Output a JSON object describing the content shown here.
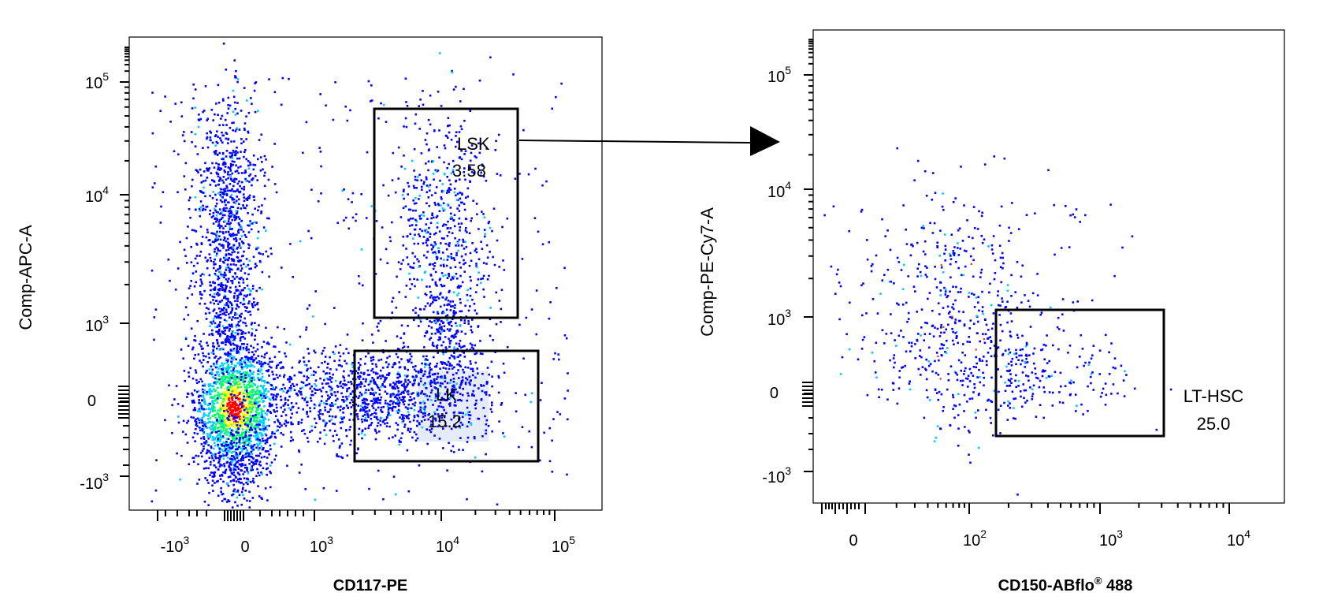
{
  "chart_data": [
    {
      "type": "scatter",
      "plot_kind": "flow-cytometry pseudocolor dot plot",
      "xlabel": "CD117-PE",
      "ylabel": "Comp-APC-A",
      "x_scale": "biexponential",
      "y_scale": "biexponential",
      "x_ticks": [
        {
          "value": -1000,
          "base": "-10",
          "exp": "3"
        },
        {
          "value": 0,
          "base": "0",
          "exp": ""
        },
        {
          "value": 1000,
          "base": "10",
          "exp": "3"
        },
        {
          "value": 10000,
          "base": "10",
          "exp": "4"
        },
        {
          "value": 100000,
          "base": "10",
          "exp": "5"
        }
      ],
      "y_ticks": [
        {
          "value": 100000,
          "base": "10",
          "exp": "5"
        },
        {
          "value": 10000,
          "base": "10",
          "exp": "4"
        },
        {
          "value": 1000,
          "base": "10",
          "exp": "3"
        },
        {
          "value": 0,
          "base": "0",
          "exp": ""
        },
        {
          "value": -1000,
          "base": "-10",
          "exp": "3"
        }
      ],
      "gates": [
        {
          "name": "LSK",
          "value": "3.58",
          "x_range": [
            2500,
            60000
          ],
          "y_range": [
            1200,
            60000
          ]
        },
        {
          "name": "LK",
          "value": "15.2",
          "x_range": [
            2000,
            60000
          ],
          "y_range": [
            -700,
            600
          ]
        }
      ],
      "populations": [
        {
          "x": 0,
          "y": 0,
          "density": "high"
        },
        {
          "x": 0,
          "y": 5000,
          "density": "medium"
        },
        {
          "x": 9000,
          "y": 8000,
          "density": "medium"
        },
        {
          "x": 7000,
          "y": 0,
          "density": "medium"
        }
      ]
    },
    {
      "type": "scatter",
      "plot_kind": "flow-cytometry pseudocolor dot plot",
      "xlabel": "CD150-ABflo",
      "xlabel_mark": "®",
      "xlabel_suffix": " 488",
      "ylabel": "Comp-PE-Cy7-A",
      "x_scale": "biexponential",
      "y_scale": "biexponential",
      "x_ticks": [
        {
          "value": 0,
          "base": "0",
          "exp": ""
        },
        {
          "value": 100,
          "base": "10",
          "exp": "2"
        },
        {
          "value": 1000,
          "base": "10",
          "exp": "3"
        },
        {
          "value": 10000,
          "base": "10",
          "exp": "4"
        }
      ],
      "y_ticks": [
        {
          "value": 100000,
          "base": "10",
          "exp": "5"
        },
        {
          "value": 10000,
          "base": "10",
          "exp": "4"
        },
        {
          "value": 1000,
          "base": "10",
          "exp": "3"
        },
        {
          "value": 0,
          "base": "0",
          "exp": ""
        },
        {
          "value": -1000,
          "base": "-10",
          "exp": "3"
        }
      ],
      "gates": [
        {
          "name": "LT-HSC",
          "value": "25.0",
          "x_range": [
            150,
            2500
          ],
          "y_range": [
            -400,
            1100
          ]
        }
      ],
      "populations": [
        {
          "x": 60,
          "y": 1200,
          "density": "low"
        }
      ]
    }
  ],
  "colors": {
    "low": "#0000ff",
    "mid": "#00ccff",
    "midhigh": "#00ff66",
    "high": "#ffff00",
    "peak": "#ff0000",
    "frame": "#000000"
  }
}
